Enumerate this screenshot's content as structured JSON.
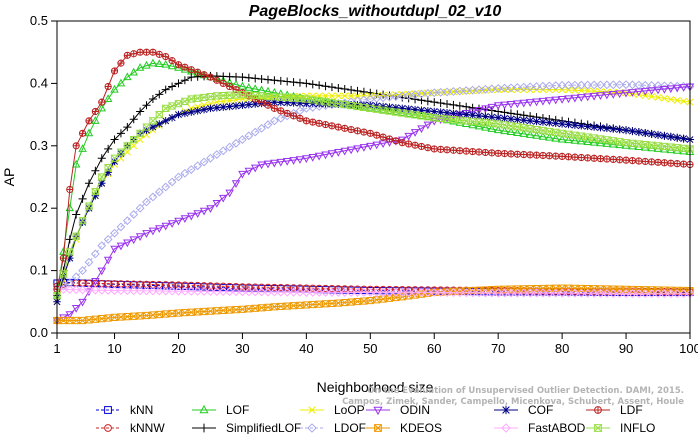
{
  "chart_data": {
    "type": "line",
    "title": "PageBlocks_withoutdupl_02_v10",
    "xlabel": "Neighborhood size",
    "ylabel": "AP",
    "xlim": [
      1,
      100
    ],
    "ylim": [
      0,
      0.5
    ],
    "xticks": [
      1,
      10,
      20,
      30,
      40,
      50,
      60,
      70,
      80,
      90,
      100
    ],
    "yticks": [
      0.0,
      0.1,
      0.2,
      0.3,
      0.4,
      0.5
    ],
    "grid": false,
    "legend_position": "bottom",
    "watermark": [
      "On the Evaluation of Unsupervised Outlier Detection. DAMI, 2015.",
      "Campos, Zimek, Sander, Campello, Micenkova, Schubert, Assent, Houle"
    ],
    "series": [
      {
        "name": "kNN",
        "color": "#0000dd",
        "marker": "square",
        "dash": "3,2",
        "points": [
          [
            1,
            0.08
          ],
          [
            3,
            0.081
          ],
          [
            5,
            0.08
          ],
          [
            10,
            0.078
          ],
          [
            20,
            0.075
          ],
          [
            30,
            0.072
          ],
          [
            40,
            0.07
          ],
          [
            50,
            0.068
          ],
          [
            60,
            0.067
          ],
          [
            70,
            0.066
          ],
          [
            80,
            0.066
          ],
          [
            90,
            0.065
          ],
          [
            100,
            0.065
          ]
        ]
      },
      {
        "name": "kNNW",
        "color": "#cc2222",
        "marker": "circle",
        "dash": "3,2",
        "points": [
          [
            1,
            0.075
          ],
          [
            3,
            0.08
          ],
          [
            5,
            0.08
          ],
          [
            10,
            0.079
          ],
          [
            20,
            0.077
          ],
          [
            30,
            0.074
          ],
          [
            40,
            0.072
          ],
          [
            50,
            0.07
          ],
          [
            60,
            0.069
          ],
          [
            70,
            0.068
          ],
          [
            80,
            0.067
          ],
          [
            90,
            0.067
          ],
          [
            100,
            0.066
          ]
        ]
      },
      {
        "name": "LOF",
        "color": "#22cc22",
        "marker": "triangle-up",
        "dash": "",
        "points": [
          [
            1,
            0.06
          ],
          [
            2,
            0.13
          ],
          [
            3,
            0.2
          ],
          [
            4,
            0.27
          ],
          [
            6,
            0.32
          ],
          [
            8,
            0.36
          ],
          [
            10,
            0.39
          ],
          [
            12,
            0.41
          ],
          [
            14,
            0.425
          ],
          [
            16,
            0.432
          ],
          [
            18,
            0.43
          ],
          [
            20,
            0.425
          ],
          [
            25,
            0.41
          ],
          [
            30,
            0.395
          ],
          [
            35,
            0.385
          ],
          [
            40,
            0.375
          ],
          [
            50,
            0.36
          ],
          [
            60,
            0.345
          ],
          [
            70,
            0.325
          ],
          [
            80,
            0.31
          ],
          [
            90,
            0.3
          ],
          [
            100,
            0.29
          ]
        ]
      },
      {
        "name": "SimplifiedLOF",
        "color": "#000000",
        "marker": "plus",
        "dash": "",
        "points": [
          [
            1,
            0.06
          ],
          [
            2,
            0.1
          ],
          [
            3,
            0.15
          ],
          [
            4,
            0.19
          ],
          [
            6,
            0.24
          ],
          [
            8,
            0.28
          ],
          [
            10,
            0.31
          ],
          [
            12,
            0.33
          ],
          [
            14,
            0.355
          ],
          [
            16,
            0.375
          ],
          [
            18,
            0.39
          ],
          [
            20,
            0.4
          ],
          [
            22,
            0.41
          ],
          [
            25,
            0.412
          ],
          [
            30,
            0.41
          ],
          [
            35,
            0.405
          ],
          [
            40,
            0.4
          ],
          [
            50,
            0.385
          ],
          [
            60,
            0.37
          ],
          [
            70,
            0.355
          ],
          [
            80,
            0.34
          ],
          [
            90,
            0.325
          ],
          [
            100,
            0.31
          ]
        ]
      },
      {
        "name": "LoOP",
        "color": "#eeee00",
        "marker": "x",
        "dash": "",
        "points": [
          [
            1,
            0.05
          ],
          [
            3,
            0.12
          ],
          [
            5,
            0.18
          ],
          [
            8,
            0.24
          ],
          [
            10,
            0.27
          ],
          [
            14,
            0.31
          ],
          [
            18,
            0.34
          ],
          [
            22,
            0.36
          ],
          [
            26,
            0.37
          ],
          [
            30,
            0.375
          ],
          [
            40,
            0.38
          ],
          [
            50,
            0.38
          ],
          [
            60,
            0.385
          ],
          [
            70,
            0.39
          ],
          [
            80,
            0.39
          ],
          [
            90,
            0.385
          ],
          [
            100,
            0.37
          ]
        ]
      },
      {
        "name": "LDOF",
        "color": "#aaaaee",
        "marker": "diamond",
        "dash": "3,2",
        "points": [
          [
            1,
            0.07
          ],
          [
            3,
            0.08
          ],
          [
            5,
            0.1
          ],
          [
            8,
            0.14
          ],
          [
            10,
            0.16
          ],
          [
            15,
            0.21
          ],
          [
            20,
            0.25
          ],
          [
            25,
            0.28
          ],
          [
            30,
            0.31
          ],
          [
            35,
            0.34
          ],
          [
            40,
            0.36
          ],
          [
            50,
            0.375
          ],
          [
            60,
            0.385
          ],
          [
            70,
            0.392
          ],
          [
            80,
            0.397
          ],
          [
            90,
            0.398
          ],
          [
            100,
            0.395
          ]
        ]
      },
      {
        "name": "ODIN",
        "color": "#9933ee",
        "marker": "triangle-down",
        "dash": "",
        "points": [
          [
            1,
            0.02
          ],
          [
            3,
            0.03
          ],
          [
            5,
            0.05
          ],
          [
            8,
            0.1
          ],
          [
            10,
            0.135
          ],
          [
            15,
            0.16
          ],
          [
            20,
            0.18
          ],
          [
            25,
            0.2
          ],
          [
            28,
            0.225
          ],
          [
            30,
            0.255
          ],
          [
            33,
            0.27
          ],
          [
            40,
            0.28
          ],
          [
            50,
            0.3
          ],
          [
            55,
            0.31
          ],
          [
            60,
            0.34
          ],
          [
            70,
            0.365
          ],
          [
            80,
            0.375
          ],
          [
            90,
            0.385
          ],
          [
            100,
            0.395
          ]
        ]
      },
      {
        "name": "KDEOS",
        "color": "#ee9900",
        "marker": "square-x",
        "dash": "",
        "points": [
          [
            1,
            0.02
          ],
          [
            5,
            0.02
          ],
          [
            10,
            0.025
          ],
          [
            15,
            0.028
          ],
          [
            20,
            0.032
          ],
          [
            25,
            0.035
          ],
          [
            30,
            0.038
          ],
          [
            35,
            0.042
          ],
          [
            40,
            0.045
          ],
          [
            45,
            0.048
          ],
          [
            50,
            0.052
          ],
          [
            55,
            0.058
          ],
          [
            60,
            0.065
          ],
          [
            70,
            0.07
          ],
          [
            80,
            0.072
          ],
          [
            90,
            0.07
          ],
          [
            100,
            0.068
          ]
        ]
      },
      {
        "name": "COF",
        "color": "#000088",
        "marker": "star",
        "dash": "",
        "points": [
          [
            1,
            0.05
          ],
          [
            2,
            0.09
          ],
          [
            3,
            0.12
          ],
          [
            4,
            0.155
          ],
          [
            6,
            0.2
          ],
          [
            8,
            0.24
          ],
          [
            10,
            0.275
          ],
          [
            12,
            0.3
          ],
          [
            14,
            0.32
          ],
          [
            16,
            0.33
          ],
          [
            18,
            0.34
          ],
          [
            20,
            0.35
          ],
          [
            25,
            0.36
          ],
          [
            30,
            0.365
          ],
          [
            35,
            0.37
          ],
          [
            40,
            0.368
          ],
          [
            50,
            0.365
          ],
          [
            60,
            0.355
          ],
          [
            70,
            0.345
          ],
          [
            80,
            0.335
          ],
          [
            90,
            0.325
          ],
          [
            100,
            0.31
          ]
        ]
      },
      {
        "name": "FastABOD",
        "color": "#ffaaff",
        "marker": "diamond",
        "dash": "",
        "points": [
          [
            1,
            0.07
          ],
          [
            10,
            0.068
          ],
          [
            20,
            0.067
          ],
          [
            30,
            0.066
          ],
          [
            40,
            0.065
          ],
          [
            50,
            0.065
          ],
          [
            60,
            0.065
          ],
          [
            70,
            0.064
          ],
          [
            80,
            0.064
          ],
          [
            90,
            0.063
          ],
          [
            100,
            0.063
          ]
        ]
      },
      {
        "name": "LDF",
        "color": "#bb2222",
        "marker": "circle-plus",
        "dash": "",
        "points": [
          [
            1,
            0.07
          ],
          [
            2,
            0.12
          ],
          [
            3,
            0.23
          ],
          [
            4,
            0.3
          ],
          [
            6,
            0.34
          ],
          [
            8,
            0.37
          ],
          [
            10,
            0.42
          ],
          [
            12,
            0.445
          ],
          [
            14,
            0.45
          ],
          [
            16,
            0.45
          ],
          [
            18,
            0.443
          ],
          [
            20,
            0.43
          ],
          [
            25,
            0.41
          ],
          [
            30,
            0.385
          ],
          [
            35,
            0.36
          ],
          [
            40,
            0.34
          ],
          [
            50,
            0.32
          ],
          [
            55,
            0.305
          ],
          [
            60,
            0.295
          ],
          [
            70,
            0.288
          ],
          [
            80,
            0.283
          ],
          [
            90,
            0.277
          ],
          [
            100,
            0.27
          ]
        ]
      },
      {
        "name": "INFLO",
        "color": "#99dd44",
        "marker": "hourglass",
        "dash": "",
        "points": [
          [
            1,
            0.06
          ],
          [
            3,
            0.13
          ],
          [
            5,
            0.18
          ],
          [
            8,
            0.25
          ],
          [
            10,
            0.28
          ],
          [
            14,
            0.32
          ],
          [
            18,
            0.36
          ],
          [
            22,
            0.375
          ],
          [
            26,
            0.38
          ],
          [
            30,
            0.382
          ],
          [
            40,
            0.375
          ],
          [
            50,
            0.36
          ],
          [
            60,
            0.345
          ],
          [
            70,
            0.335
          ],
          [
            80,
            0.32
          ],
          [
            90,
            0.305
          ],
          [
            100,
            0.295
          ]
        ]
      }
    ]
  }
}
